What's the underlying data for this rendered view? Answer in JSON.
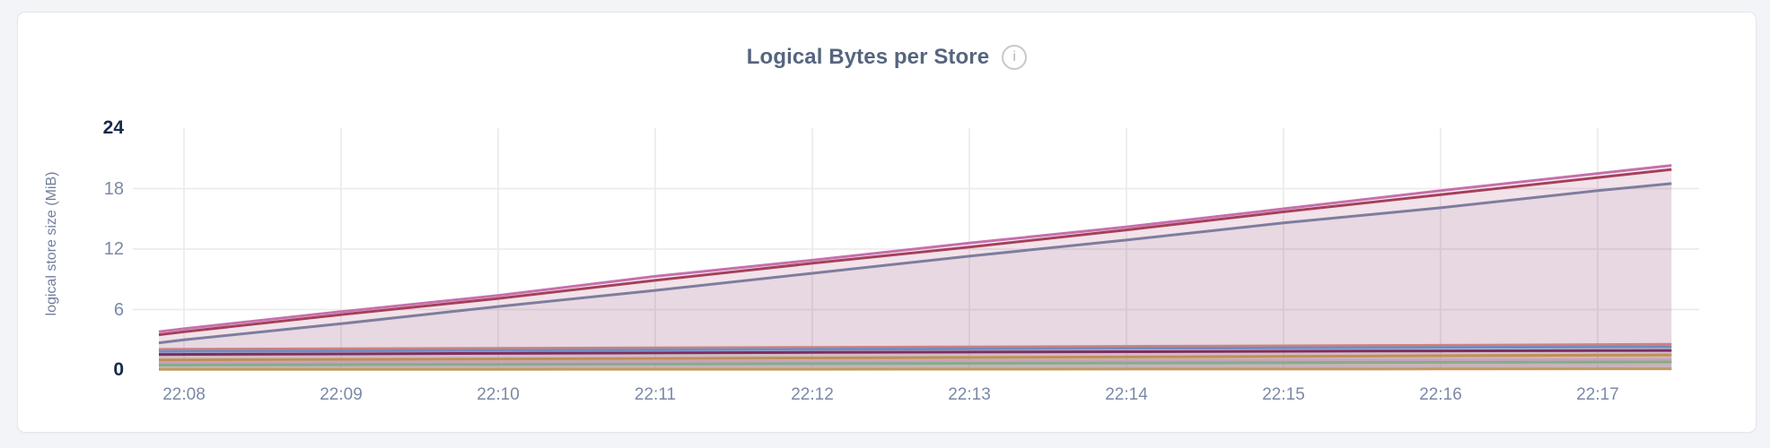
{
  "header": {
    "title": "Logical Bytes per Store",
    "info_icon_glyph": "i"
  },
  "colors": {
    "page_bg": "#f3f4f8",
    "card_bg": "#ffffff",
    "card_border": "#e6e7ea",
    "grid": "#ebebeb",
    "title_text": "#56657f",
    "axis_title_text": "#717e9d",
    "tick_text": "#7b89a6",
    "tick_text_emphasis": "#17294d"
  },
  "chart_data": {
    "type": "area",
    "title": "Logical Bytes per Store",
    "xlabel": "",
    "ylabel": "logical store size (MiB)",
    "x_tick_labels": [
      "22:08",
      "22:09",
      "22:10",
      "22:11",
      "22:12",
      "22:13",
      "22:14",
      "22:15",
      "22:16",
      "22:17"
    ],
    "y_ticks": [
      0,
      6,
      12,
      18,
      24
    ],
    "y_ticks_emphasized": [
      0,
      24
    ],
    "ylim": [
      0,
      24
    ],
    "grid": true,
    "legend": "none",
    "x_unit": "minutes offset from 22:08",
    "x_data_range": [
      -0.16,
      9.47
    ],
    "series": [
      {
        "id": "store-pink",
        "color": "#c670ad",
        "points": [
          [
            -0.16,
            3.8
          ],
          [
            0,
            4.1
          ],
          [
            1,
            5.8
          ],
          [
            2,
            7.4
          ],
          [
            3,
            9.3
          ],
          [
            4,
            10.9
          ],
          [
            5,
            12.6
          ],
          [
            6,
            14.2
          ],
          [
            7,
            16.0
          ],
          [
            8,
            17.8
          ],
          [
            9,
            19.5
          ],
          [
            9.47,
            20.3
          ]
        ]
      },
      {
        "id": "store-darkred",
        "color": "#a64059",
        "points": [
          [
            -0.16,
            3.5
          ],
          [
            0,
            3.8
          ],
          [
            1,
            5.5
          ],
          [
            2,
            7.1
          ],
          [
            3,
            8.9
          ],
          [
            4,
            10.6
          ],
          [
            5,
            12.2
          ],
          [
            6,
            13.9
          ],
          [
            7,
            15.7
          ],
          [
            8,
            17.4
          ],
          [
            9,
            19.1
          ],
          [
            9.47,
            19.9
          ]
        ]
      },
      {
        "id": "store-slate",
        "color": "#7e7d9e",
        "points": [
          [
            -0.16,
            2.7
          ],
          [
            0,
            3.0
          ],
          [
            1,
            4.6
          ],
          [
            2,
            6.3
          ],
          [
            3,
            7.9
          ],
          [
            4,
            9.6
          ],
          [
            5,
            11.3
          ],
          [
            6,
            12.9
          ],
          [
            7,
            14.6
          ],
          [
            8,
            16.1
          ],
          [
            9,
            17.8
          ],
          [
            9.47,
            18.5
          ]
        ]
      },
      {
        "id": "store-salmon",
        "color": "#d08080",
        "points": [
          [
            -0.16,
            2.05
          ],
          [
            2,
            2.15
          ],
          [
            4,
            2.25
          ],
          [
            6,
            2.35
          ],
          [
            8,
            2.45
          ],
          [
            9.47,
            2.55
          ]
        ]
      },
      {
        "id": "store-blue",
        "color": "#6e8ec1",
        "points": [
          [
            -0.16,
            1.85
          ],
          [
            2,
            1.95
          ],
          [
            4,
            2.05
          ],
          [
            6,
            2.15
          ],
          [
            8,
            2.25
          ],
          [
            9.47,
            2.3
          ]
        ]
      },
      {
        "id": "store-magenta",
        "color": "#7e2e5f",
        "points": [
          [
            -0.16,
            1.55
          ],
          [
            2,
            1.65
          ],
          [
            4,
            1.75
          ],
          [
            6,
            1.82
          ],
          [
            8,
            1.9
          ],
          [
            9.47,
            1.95
          ]
        ]
      },
      {
        "id": "store-gold",
        "color": "#c0914f",
        "points": [
          [
            -0.16,
            1.0
          ],
          [
            2,
            1.1
          ],
          [
            4,
            1.2
          ],
          [
            6,
            1.3
          ],
          [
            8,
            1.42
          ],
          [
            9.47,
            1.5
          ]
        ]
      },
      {
        "id": "store-mauve",
        "color": "#c7a3bd",
        "points": [
          [
            -0.16,
            0.75
          ],
          [
            2,
            0.82
          ],
          [
            4,
            0.88
          ],
          [
            6,
            0.95
          ],
          [
            8,
            1.0
          ],
          [
            9.47,
            1.05
          ]
        ]
      },
      {
        "id": "store-green",
        "color": "#85ac8a",
        "points": [
          [
            -0.16,
            0.5
          ],
          [
            2,
            0.56
          ],
          [
            4,
            0.63
          ],
          [
            6,
            0.7
          ],
          [
            8,
            0.76
          ],
          [
            9.47,
            0.8
          ]
        ]
      },
      {
        "id": "store-tan",
        "color": "#c29a60",
        "points": [
          [
            -0.16,
            0.06
          ],
          [
            2,
            0.07
          ],
          [
            4,
            0.08
          ],
          [
            6,
            0.1
          ],
          [
            8,
            0.11
          ],
          [
            9.47,
            0.12
          ]
        ]
      }
    ]
  }
}
